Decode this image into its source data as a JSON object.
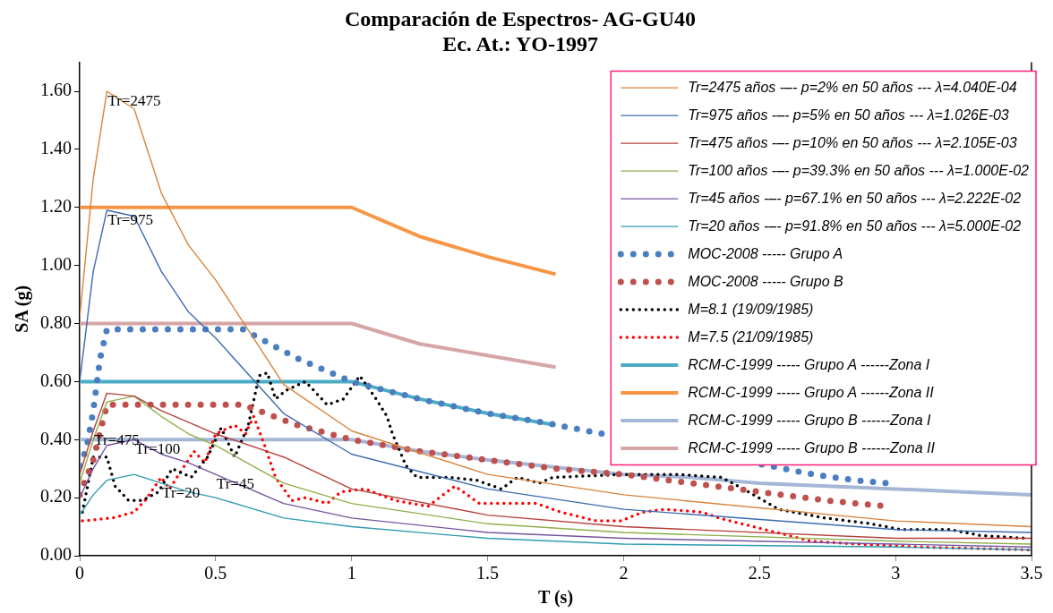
{
  "chart_data": {
    "type": "line",
    "title": "Comparación de Espectros- AG-GU40",
    "subtitle": "Ec. At.: YO-1997",
    "xlabel": "T (s)",
    "ylabel": "SA (g)",
    "xlim": [
      0,
      3.5
    ],
    "xticks": [
      0,
      0.5,
      1,
      1.5,
      2,
      2.5,
      3,
      3.5
    ],
    "ylim": [
      0,
      1.7
    ],
    "yticks": [
      {
        "value": 0,
        "label": "0.00"
      },
      {
        "value": 0.2,
        "label": "0.20"
      },
      {
        "value": 0.4,
        "label": "0.40"
      },
      {
        "value": 0.6,
        "label": "0.60"
      },
      {
        "value": 0.8,
        "label": "0.80"
      },
      {
        "value": 1,
        "label": "1.00"
      },
      {
        "value": 1.2,
        "label": "1.20"
      },
      {
        "value": 1.4,
        "label": "1.40"
      },
      {
        "value": 1.6,
        "label": "1.60"
      }
    ],
    "grid": false,
    "legend": "top right",
    "series": [
      {
        "type": "line",
        "name": "Tr=2475 años -–- p=2% en 50 años --- λ=4.040E-04",
        "color": "#d9833b",
        "line_style": "solid",
        "x": [
          0,
          0.05,
          0.1,
          0.2,
          0.3,
          0.4,
          0.5,
          0.75,
          1,
          1.5,
          2,
          3,
          3.5
        ],
        "values": [
          0.82,
          1.3,
          1.6,
          1.54,
          1.25,
          1.07,
          0.95,
          0.59,
          0.43,
          0.28,
          0.21,
          0.12,
          0.1
        ]
      },
      {
        "type": "line",
        "name": "Tr=975 años -–- p=5% en 50 años --- λ=1.026E-03",
        "color": "#3d6bb0",
        "line_style": "solid",
        "x": [
          0,
          0.05,
          0.1,
          0.2,
          0.3,
          0.4,
          0.5,
          0.75,
          1,
          1.5,
          2,
          3,
          3.5
        ],
        "values": [
          0.6,
          0.98,
          1.19,
          1.17,
          0.98,
          0.84,
          0.75,
          0.49,
          0.35,
          0.23,
          0.16,
          0.09,
          0.08
        ]
      },
      {
        "type": "line",
        "name": "Tr=475 años -–- p=10% en 50 años --- λ=2.105E-03",
        "color": "#b5403c",
        "line_style": "solid",
        "x": [
          0,
          0.05,
          0.1,
          0.2,
          0.3,
          0.4,
          0.5,
          0.75,
          1,
          1.5,
          2,
          3,
          3.5
        ],
        "values": [
          0.28,
          0.43,
          0.56,
          0.55,
          0.5,
          0.46,
          0.42,
          0.34,
          0.23,
          0.14,
          0.1,
          0.06,
          0.06
        ]
      },
      {
        "type": "line",
        "name": "Tr=100 años -–- p=39.3% en 50 años --- λ=1.000E-02",
        "color": "#8fae4a",
        "line_style": "solid",
        "x": [
          0,
          0.05,
          0.1,
          0.2,
          0.3,
          0.4,
          0.5,
          0.75,
          1,
          1.5,
          2,
          3,
          3.5
        ],
        "values": [
          0.25,
          0.4,
          0.53,
          0.55,
          0.48,
          0.42,
          0.38,
          0.25,
          0.18,
          0.11,
          0.08,
          0.05,
          0.04
        ]
      },
      {
        "type": "line",
        "name": "Tr=45 años -–- p=67.1% en 50 años --- λ=2.222E-02",
        "color": "#7655a0",
        "line_style": "solid",
        "x": [
          0,
          0.05,
          0.1,
          0.2,
          0.3,
          0.4,
          0.5,
          0.75,
          1,
          1.5,
          2,
          3,
          3.5
        ],
        "values": [
          0.2,
          0.3,
          0.38,
          0.4,
          0.35,
          0.32,
          0.28,
          0.18,
          0.13,
          0.08,
          0.06,
          0.04,
          0.03
        ]
      },
      {
        "type": "line",
        "name": "Tr=20 años -–- p=91.8% en 50 años --- λ=5.000E-02",
        "color": "#2f9bb0",
        "line_style": "solid",
        "x": [
          0,
          0.05,
          0.1,
          0.2,
          0.3,
          0.4,
          0.5,
          0.75,
          1,
          1.5,
          2,
          3,
          3.5
        ],
        "values": [
          0.14,
          0.21,
          0.26,
          0.28,
          0.25,
          0.22,
          0.2,
          0.13,
          0.1,
          0.06,
          0.04,
          0.03,
          0.02
        ]
      },
      {
        "type": "line",
        "name": "MOC-2008 ----- Grupo A",
        "color": "#4a7ec0",
        "line_style": "dotted",
        "x": [
          0,
          0.025,
          0.05,
          0.075,
          0.1,
          0.6,
          0.8,
          1,
          1.25,
          1.5,
          1.7,
          2.7,
          2.85,
          2.97
        ],
        "values": [
          0.31,
          0.37,
          0.5,
          0.68,
          0.78,
          0.78,
          0.68,
          0.6,
          0.54,
          0.49,
          0.46,
          0.28,
          0.26,
          0.25
        ]
      },
      {
        "type": "line",
        "name": "MOC-2008 ----- Grupo B",
        "color": "#c0504d",
        "line_style": "dotted",
        "x": [
          0,
          0.05,
          0.1,
          0.6,
          0.8,
          1,
          1.25,
          1.5,
          1.75,
          2,
          2.25,
          2.5,
          2.75,
          2.97
        ],
        "values": [
          0.21,
          0.33,
          0.52,
          0.52,
          0.45,
          0.4,
          0.36,
          0.33,
          0.3,
          0.28,
          0.25,
          0.22,
          0.19,
          0.17
        ]
      },
      {
        "type": "line",
        "name": "M=8.1 (19/09/1985)",
        "color": "#000000",
        "line_style": "dotted",
        "x": [
          0.01,
          0.05,
          0.1,
          0.13,
          0.18,
          0.23,
          0.29,
          0.34,
          0.41,
          0.47,
          0.52,
          0.57,
          0.62,
          0.66,
          0.69,
          0.72,
          0.76,
          0.83,
          0.91,
          0.97,
          1.03,
          1.09,
          1.13,
          1.15,
          1.2,
          1.24,
          1.36,
          1.46,
          1.55,
          1.61,
          1.69,
          1.74,
          2,
          2.2,
          2.36,
          2.46,
          2.57,
          2.74,
          2.91,
          3.02,
          3.2,
          3.31,
          3.48
        ],
        "values": [
          0.15,
          0.34,
          0.34,
          0.24,
          0.19,
          0.19,
          0.22,
          0.3,
          0.27,
          0.34,
          0.44,
          0.34,
          0.45,
          0.62,
          0.63,
          0.54,
          0.57,
          0.6,
          0.52,
          0.54,
          0.62,
          0.54,
          0.48,
          0.42,
          0.31,
          0.27,
          0.27,
          0.26,
          0.23,
          0.27,
          0.25,
          0.27,
          0.28,
          0.28,
          0.27,
          0.22,
          0.16,
          0.13,
          0.11,
          0.09,
          0.09,
          0.07,
          0.06
        ]
      },
      {
        "type": "line",
        "name": "M=7.5 (21/09/1985)",
        "color": "#ff0000",
        "line_style": "dotted",
        "x": [
          0.01,
          0.12,
          0.2,
          0.24,
          0.3,
          0.33,
          0.42,
          0.46,
          0.5,
          0.57,
          0.61,
          0.64,
          0.68,
          0.72,
          0.78,
          0.83,
          0.91,
          0.96,
          1.05,
          1.16,
          1.28,
          1.38,
          1.47,
          1.68,
          1.77,
          1.9,
          1.99,
          2.07,
          2.15,
          2.29,
          2.35,
          2.52,
          2.69,
          2.86,
          3.09,
          3.49
        ],
        "values": [
          0.12,
          0.13,
          0.15,
          0.19,
          0.27,
          0.23,
          0.36,
          0.32,
          0.42,
          0.45,
          0.42,
          0.48,
          0.38,
          0.27,
          0.19,
          0.2,
          0.18,
          0.22,
          0.23,
          0.19,
          0.17,
          0.24,
          0.18,
          0.18,
          0.15,
          0.12,
          0.12,
          0.15,
          0.16,
          0.15,
          0.13,
          0.09,
          0.05,
          0.04,
          0.03,
          0.02
        ]
      },
      {
        "type": "line",
        "name": "RCM-C-1999 ----- Grupo A ------Zona I",
        "color": "#4bacc6",
        "line_style": "solid",
        "x": [
          0,
          1,
          1.25,
          1.5,
          1.75
        ],
        "values": [
          0.6,
          0.6,
          0.54,
          0.49,
          0.45
        ]
      },
      {
        "type": "line",
        "name": "RCM-C-1999 ----- Grupo A ------Zona II",
        "color": "#f79646",
        "line_style": "solid",
        "x": [
          0,
          1,
          1.25,
          1.5,
          1.75
        ],
        "values": [
          1.2,
          1.2,
          1.1,
          1.03,
          0.97
        ]
      },
      {
        "type": "line",
        "name": "RCM-C-1999 ----- Grupo B ------Zona I",
        "color": "#a5b6d6",
        "line_style": "solid",
        "x": [
          0,
          1,
          1.25,
          1.5,
          2,
          2.25,
          2.5,
          2.75,
          3,
          3.25,
          3.5
        ],
        "values": [
          0.4,
          0.4,
          0.36,
          0.33,
          0.28,
          0.27,
          0.25,
          0.24,
          0.23,
          0.22,
          0.21
        ]
      },
      {
        "type": "line",
        "name": "RCM-C-1999 ----- Grupo B ------Zona II",
        "color": "#d6a5a6",
        "line_style": "solid",
        "x": [
          0,
          1,
          1.25,
          1.5,
          1.75
        ],
        "values": [
          0.8,
          0.8,
          0.73,
          0.69,
          0.65
        ]
      }
    ],
    "annotations": [
      {
        "text": "Tr=2475",
        "x": 0.1,
        "y": 1.6
      },
      {
        "text": "Tr=975",
        "x": 0.1,
        "y": 1.19
      },
      {
        "text": "Tr=475",
        "x": 0.05,
        "y": 0.43
      },
      {
        "text": "Tr=100",
        "x": 0.2,
        "y": 0.4
      },
      {
        "text": "Tr=45",
        "x": 0.5,
        "y": 0.28
      },
      {
        "text": "Tr=20",
        "x": 0.3,
        "y": 0.25
      }
    ]
  }
}
